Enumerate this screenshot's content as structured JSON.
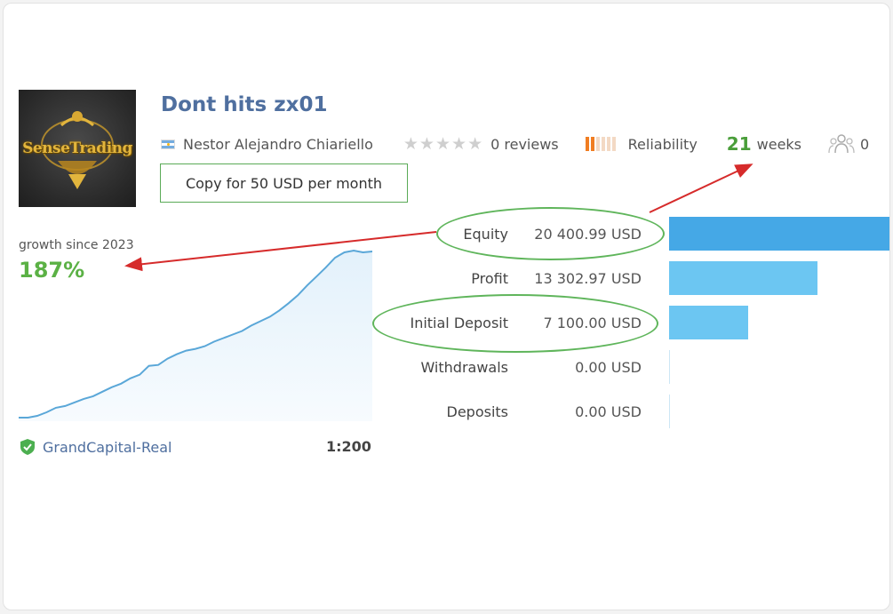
{
  "logo": {
    "text": "SenseTrading"
  },
  "signal": {
    "title": "Dont hits zx01",
    "author": "Nestor Alejandro Chiariello",
    "rating_stars": 0,
    "reviews": "0 reviews",
    "reliability_label": "Reliability",
    "reliability_level": 2,
    "reliability_max": 6,
    "weeks_value": "21",
    "weeks_label": "weeks",
    "subscribers": "0",
    "copy_button_label": "Copy for 50 USD per month"
  },
  "growth": {
    "label": "growth since 2023",
    "value": "187%"
  },
  "broker": {
    "name": "GrandCapital-Real",
    "leverage": "1:200"
  },
  "stats": [
    {
      "label": "Equity",
      "value": "20 400.99 USD",
      "amount": 20400.99,
      "color": "#45a8e6"
    },
    {
      "label": "Profit",
      "value": "13 302.97 USD",
      "amount": 13302.97,
      "color": "#6cc6f2"
    },
    {
      "label": "Initial Deposit",
      "value": "7 100.00 USD",
      "amount": 7100.0,
      "color": "#6cc6f2"
    },
    {
      "label": "Withdrawals",
      "value": "0.00 USD",
      "amount": 0,
      "color": "#6cc6f2"
    },
    {
      "label": "Deposits",
      "value": "0.00 USD",
      "amount": 0,
      "color": "#6cc6f2"
    }
  ],
  "colors": {
    "title": "#4f6f9f",
    "growth": "#5bb145",
    "chart_line": "#5aa7d8",
    "annotation_oval": "#5fb55b",
    "annotation_arrow": "#d62b2b"
  },
  "chart_data": {
    "type": "area",
    "title": "",
    "xlabel": "",
    "ylabel": "",
    "series": [
      {
        "values": [
          0,
          0,
          2,
          6,
          11,
          13,
          17,
          21,
          24,
          29,
          34,
          38,
          44,
          48,
          58,
          59,
          66,
          71,
          75,
          77,
          80,
          85,
          89,
          93,
          97,
          103,
          108,
          113,
          120,
          128,
          137,
          148,
          158,
          168,
          179,
          185,
          187,
          185,
          186
        ]
      }
    ]
  }
}
